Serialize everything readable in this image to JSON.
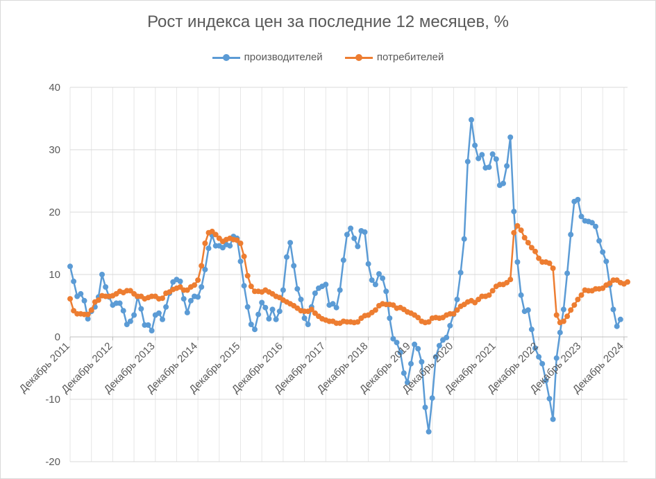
{
  "chart_data": {
    "type": "line",
    "title": "Рост индекса цен за последние 12 месяцев, %",
    "xlabel": "",
    "ylabel": "",
    "ylim": [
      -20,
      40
    ],
    "yticks": [
      -20,
      -10,
      0,
      10,
      20,
      30,
      40
    ],
    "grid": true,
    "legend_position": "top",
    "x_tick_labels": [
      "Декабрь 2011",
      "Декабрь 2012",
      "Декабрь 2013",
      "Декабрь 2014",
      "Декабрь 2015",
      "Декабрь 2016",
      "Декабрь 2017",
      "Декабрь 2018",
      "Декабрь 2019",
      "Декабрь 2020",
      "Декабрь 2021",
      "Декабрь 2022",
      "Декабрь 2023",
      "Декабрь 2024"
    ],
    "x_start": "2011-12",
    "series": [
      {
        "name": "производителей",
        "color": "#5b9bd5",
        "values": [
          11.3,
          8.9,
          6.5,
          6.9,
          5.8,
          2.9,
          4.1,
          4.8,
          6.4,
          10.0,
          8.0,
          6.4,
          5.1,
          5.4,
          5.4,
          4.2,
          2.0,
          2.5,
          3.5,
          6.4,
          4.5,
          1.9,
          1.9,
          1.0,
          3.5,
          3.8,
          2.8,
          4.8,
          7.0,
          8.8,
          9.2,
          8.9,
          6.1,
          3.9,
          5.8,
          6.5,
          6.4,
          8.0,
          10.8,
          14.2,
          16.3,
          14.6,
          14.6,
          14.3,
          14.8,
          14.6,
          16.1,
          15.8,
          12.1,
          8.2,
          4.8,
          2.0,
          1.2,
          3.6,
          5.5,
          4.7,
          2.9,
          4.4,
          2.8,
          4.1,
          7.5,
          12.8,
          15.1,
          11.4,
          7.7,
          6.0,
          3.0,
          2.0,
          4.8,
          7.0,
          7.8,
          8.1,
          8.4,
          5.1,
          5.3,
          4.7,
          7.5,
          12.3,
          16.4,
          17.4,
          15.8,
          14.5,
          17.0,
          16.8,
          11.7,
          9.1,
          8.4,
          10.1,
          9.4,
          7.3,
          3.0,
          -0.3,
          -0.9,
          -2.5,
          -5.8,
          -7.3,
          -4.3,
          -1.2,
          -1.9,
          -4.0,
          -11.3,
          -15.2,
          -9.8,
          -3.2,
          -1.4,
          -0.5,
          -0.1,
          1.8,
          3.6,
          6.0,
          10.3,
          15.7,
          28.1,
          34.8,
          30.7,
          28.6,
          29.2,
          27.1,
          27.2,
          29.3,
          28.5,
          24.3,
          24.6,
          27.4,
          32.0,
          20.1,
          12.0,
          6.7,
          4.1,
          4.3,
          1.2,
          -1.8,
          -3.2,
          -4.3,
          -7.0,
          -9.9,
          -13.2,
          -3.4,
          0.7,
          4.4,
          10.2,
          16.4,
          21.7,
          22.0,
          19.3,
          18.6,
          18.5,
          18.3,
          17.7,
          15.4,
          13.6,
          12.1,
          8.3,
          4.4,
          1.7,
          2.8
        ]
      },
      {
        "name": "потребителей",
        "color": "#ed7d31",
        "values": [
          6.1,
          4.2,
          3.7,
          3.7,
          3.6,
          3.6,
          4.3,
          5.6,
          5.9,
          6.6,
          6.5,
          6.5,
          6.6,
          6.9,
          7.3,
          7.1,
          7.4,
          7.4,
          6.9,
          6.5,
          6.5,
          6.1,
          6.3,
          6.5,
          6.5,
          6.1,
          6.2,
          7.0,
          7.2,
          7.6,
          7.8,
          8.0,
          7.5,
          7.5,
          8.0,
          8.3,
          9.1,
          11.4,
          15.0,
          16.7,
          16.9,
          16.4,
          15.8,
          15.3,
          15.6,
          15.8,
          15.6,
          15.5,
          15.0,
          12.9,
          9.8,
          8.1,
          7.3,
          7.3,
          7.2,
          7.5,
          7.2,
          6.9,
          6.5,
          6.3,
          5.9,
          5.6,
          5.3,
          5.0,
          4.6,
          4.2,
          4.1,
          4.1,
          4.4,
          3.8,
          3.3,
          2.9,
          2.7,
          2.5,
          2.5,
          2.2,
          2.2,
          2.5,
          2.4,
          2.4,
          2.3,
          2.4,
          3.0,
          3.4,
          3.5,
          3.9,
          4.3,
          5.0,
          5.3,
          5.2,
          5.2,
          5.1,
          4.6,
          4.7,
          4.4,
          4.0,
          3.8,
          3.5,
          3.1,
          2.5,
          2.3,
          2.4,
          3.0,
          3.1,
          3.0,
          3.1,
          3.5,
          3.7,
          3.7,
          4.3,
          4.9,
          5.2,
          5.6,
          5.8,
          5.5,
          6.0,
          6.5,
          6.5,
          6.7,
          7.4,
          8.1,
          8.4,
          8.4,
          8.7,
          9.2,
          16.7,
          17.8,
          17.1,
          15.9,
          15.1,
          14.3,
          13.7,
          12.6,
          12.0,
          12.0,
          11.8,
          11.0,
          3.5,
          2.3,
          2.5,
          3.3,
          4.3,
          5.1,
          6.0,
          6.7,
          7.5,
          7.4,
          7.4,
          7.7,
          7.7,
          7.8,
          8.3,
          8.6,
          9.1,
          9.1,
          8.7,
          8.5,
          8.8
        ]
      }
    ]
  }
}
